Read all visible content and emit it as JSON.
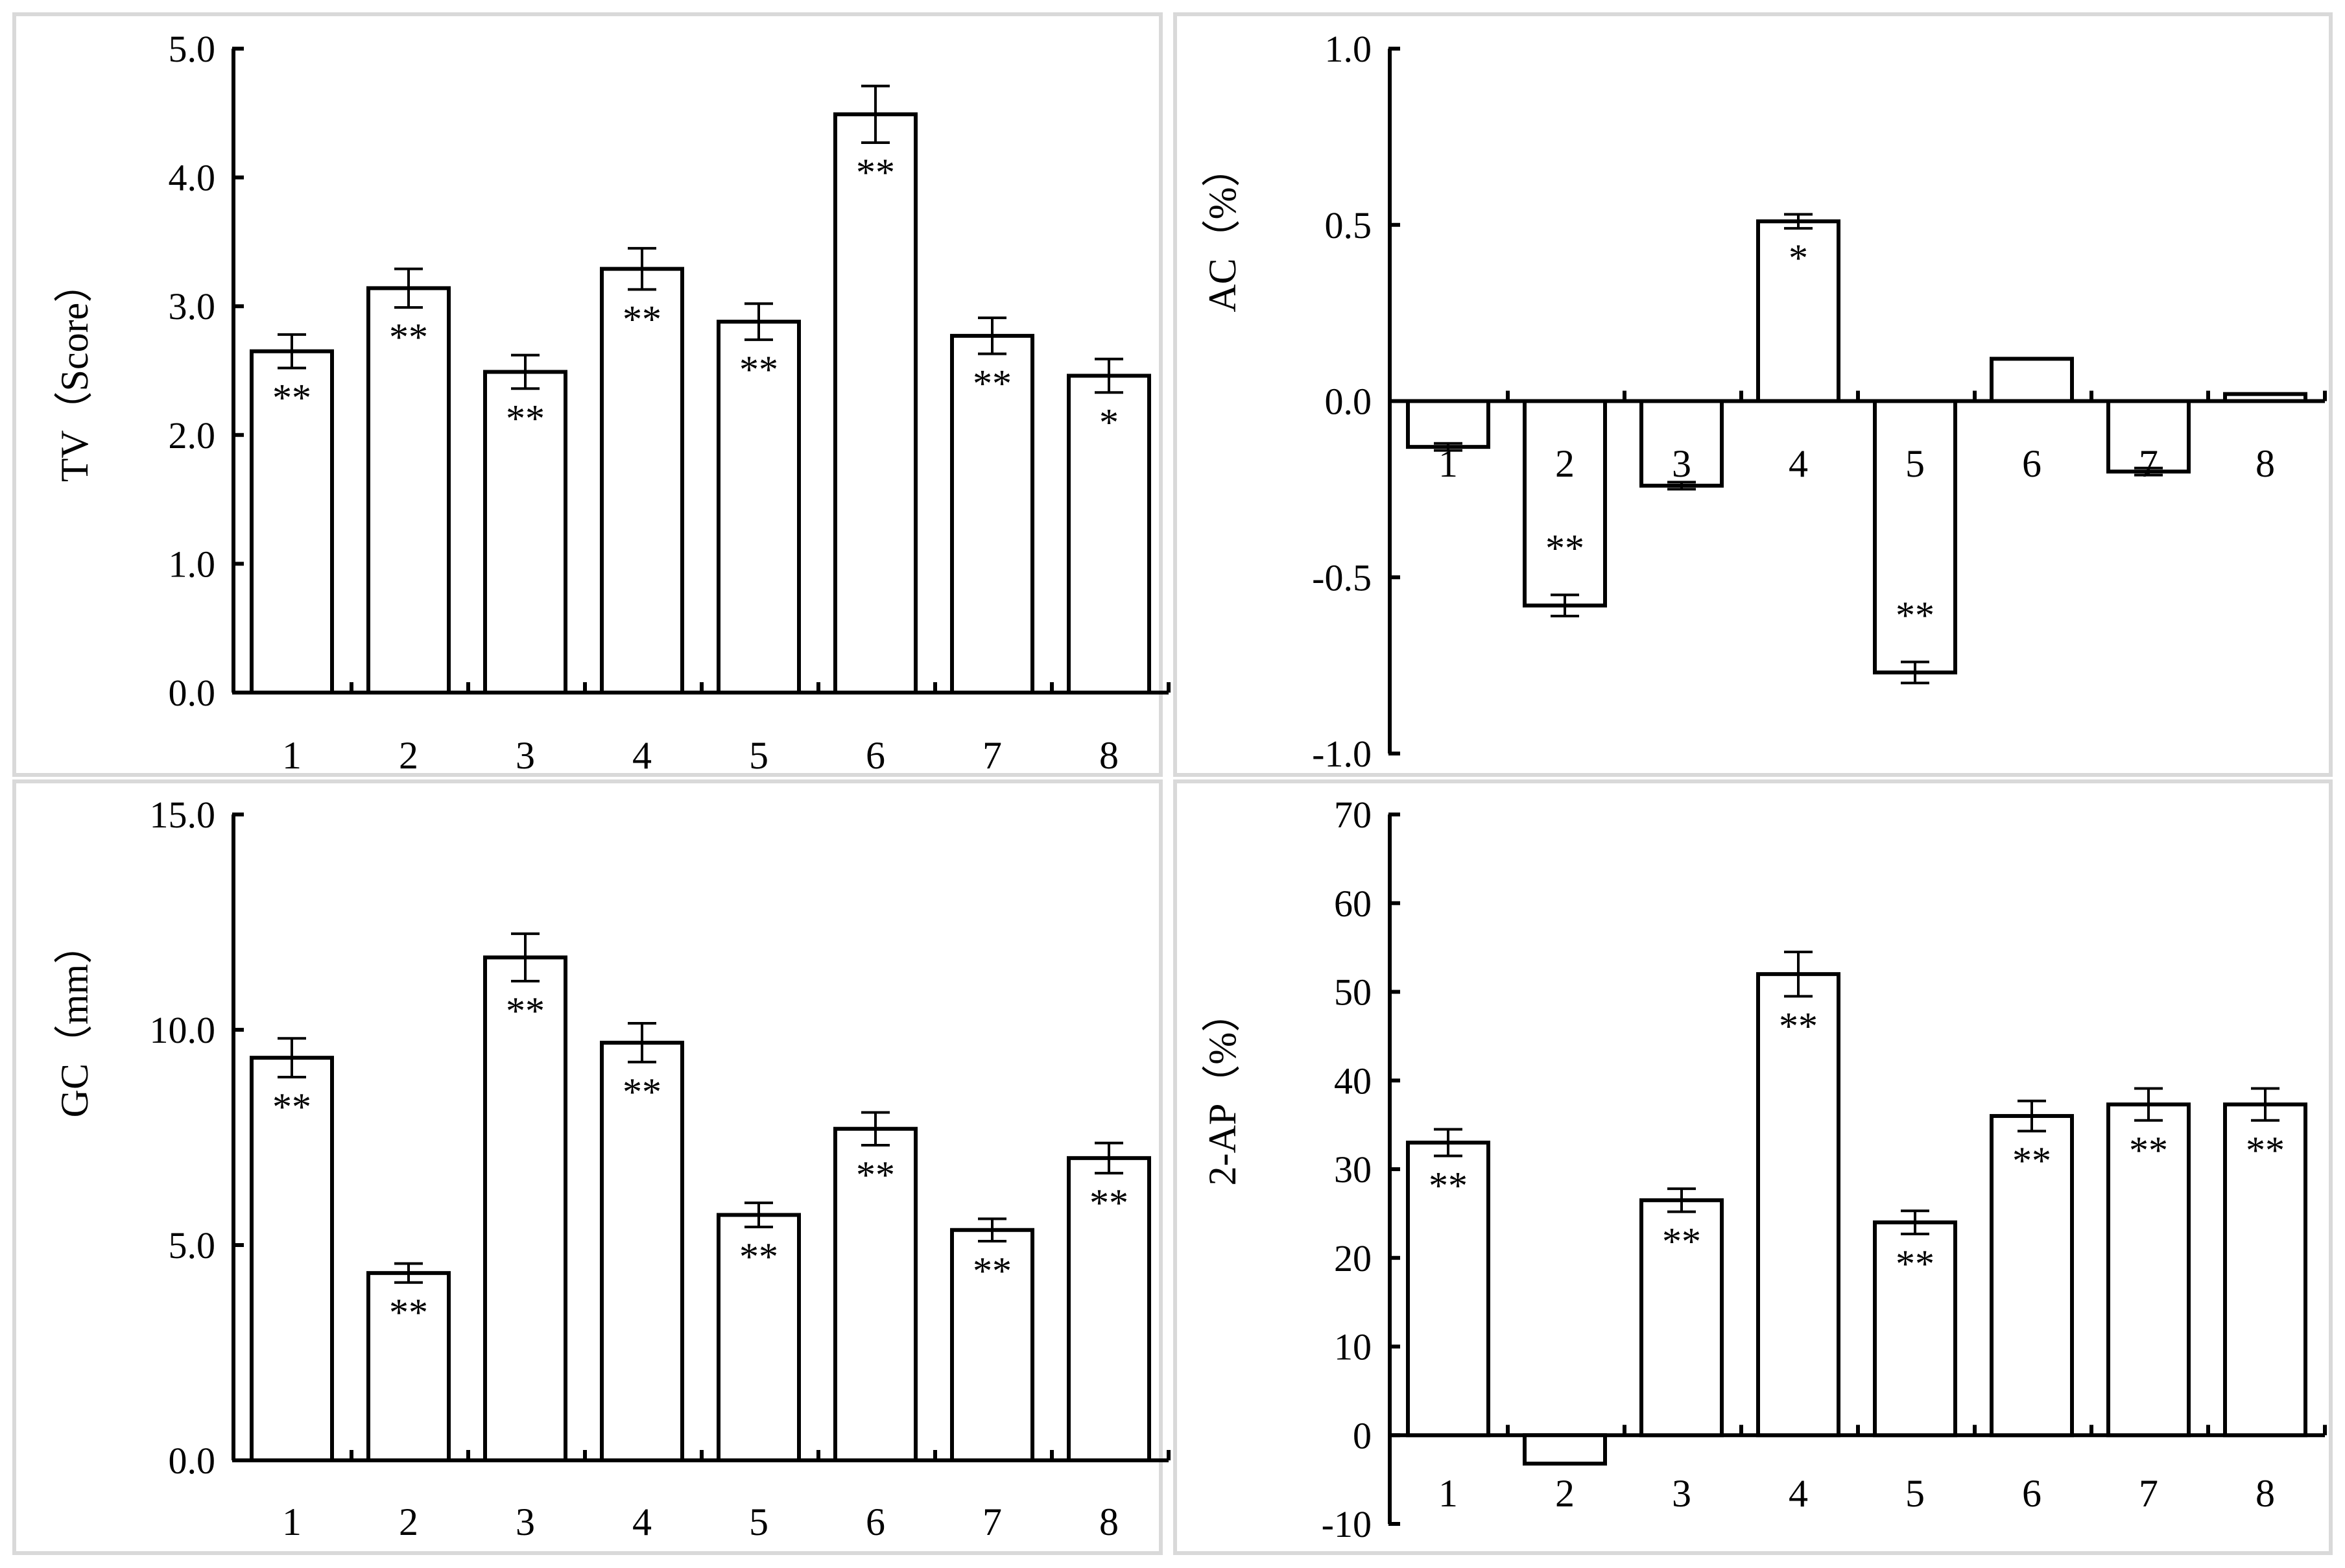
{
  "chart_data": [
    {
      "type": "bar",
      "panel": "top-left",
      "ylabel": "TV（Score）",
      "categories": [
        "1",
        "2",
        "3",
        "4",
        "5",
        "6",
        "7",
        "8"
      ],
      "values": [
        2.65,
        3.14,
        2.49,
        3.29,
        2.88,
        4.49,
        2.77,
        2.46
      ],
      "errors": [
        0.13,
        0.15,
        0.13,
        0.16,
        0.14,
        0.22,
        0.14,
        0.13
      ],
      "significance": [
        "**",
        "**",
        "**",
        "**",
        "**",
        "**",
        "**",
        "*"
      ],
      "ylim": [
        0,
        5
      ],
      "yticks": [
        "0.0",
        "1.0",
        "2.0",
        "3.0",
        "4.0",
        "5.0"
      ],
      "tick_values": [
        0,
        1,
        2,
        3,
        4,
        5
      ],
      "category_labels_position": "bottom"
    },
    {
      "type": "bar",
      "panel": "top-right",
      "ylabel": "AC（%）",
      "categories": [
        "1",
        "2",
        "3",
        "4",
        "5",
        "6",
        "7",
        "8"
      ],
      "values": [
        -0.13,
        -0.58,
        -0.24,
        0.51,
        -0.77,
        0.12,
        -0.2,
        0.02
      ],
      "errors": [
        0.01,
        0.03,
        0.01,
        0.02,
        0.03,
        0.0,
        0.01,
        0.0
      ],
      "significance": [
        "",
        "**",
        "",
        "*",
        "**",
        "",
        "",
        ""
      ],
      "ylim": [
        -1,
        1
      ],
      "yticks": [
        "-1.0",
        "-0.5",
        "0.0",
        "0.5",
        "1.0"
      ],
      "tick_values": [
        -1,
        -0.5,
        0,
        0.5,
        1
      ],
      "category_labels_position": "zero-line"
    },
    {
      "type": "bar",
      "panel": "bottom-left",
      "ylabel": "GC（mm）",
      "categories": [
        "1",
        "2",
        "3",
        "4",
        "5",
        "6",
        "7",
        "8"
      ],
      "values": [
        9.35,
        4.35,
        11.68,
        9.7,
        5.7,
        7.7,
        5.35,
        7.02
      ],
      "errors": [
        0.45,
        0.22,
        0.55,
        0.45,
        0.28,
        0.38,
        0.26,
        0.35
      ],
      "significance": [
        "**",
        "**",
        "**",
        "**",
        "**",
        "**",
        "**",
        "**"
      ],
      "ylim": [
        0,
        15
      ],
      "yticks": [
        "0.0",
        "5.0",
        "10.0",
        "15.0"
      ],
      "tick_values": [
        0,
        5,
        10,
        15
      ],
      "category_labels_position": "bottom"
    },
    {
      "type": "bar",
      "panel": "bottom-right",
      "ylabel": "2-AP（%）",
      "categories": [
        "1",
        "2",
        "3",
        "4",
        "5",
        "6",
        "7",
        "8"
      ],
      "values": [
        33,
        -3.2,
        26.5,
        52,
        24,
        36,
        37.3,
        37.3
      ],
      "errors": [
        1.5,
        0.0,
        1.3,
        2.5,
        1.3,
        1.7,
        1.8,
        1.8
      ],
      "significance": [
        "**",
        "",
        "**",
        "**",
        "**",
        "**",
        "**",
        "**"
      ],
      "ylim": [
        -10,
        70
      ],
      "yticks": [
        "-10",
        "0",
        "10",
        "20",
        "30",
        "40",
        "50",
        "60",
        "70"
      ],
      "tick_values": [
        -10,
        0,
        10,
        20,
        30,
        40,
        50,
        60,
        70
      ],
      "category_labels_position": "zero-line"
    }
  ],
  "style": {
    "bar_fill": "#ffffff",
    "stroke": "#000000",
    "frame": "#d9d9d9"
  }
}
